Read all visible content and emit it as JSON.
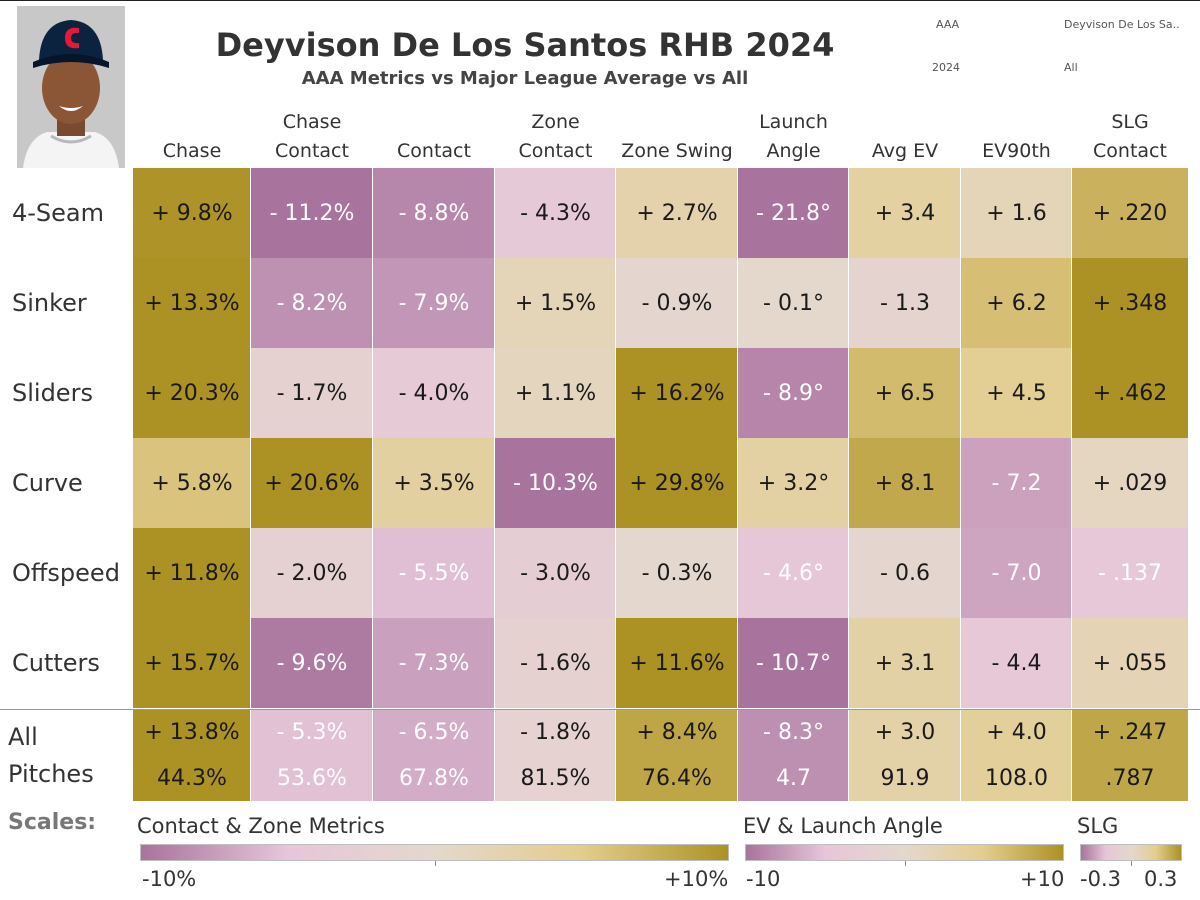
{
  "title": "Deyvison De Los Santos RHB 2024",
  "subtitle": "AAA Metrics vs Major League Average vs All",
  "filters": {
    "level": "AAA",
    "player": "Deyvison De Los Sa..",
    "year": "2024",
    "pitch_group": "All"
  },
  "photo": {
    "cap_color": "#0c2340",
    "logo_color": "#e31937",
    "logo_letter": "C"
  },
  "colors": {
    "purple_dark": "#a8739c",
    "purple_light": "#e6c6d9",
    "neutral": "#e4d8cc",
    "gold_light": "#e3cd8e",
    "gold_dark": "#ac9224"
  },
  "chart_data": {
    "type": "heatmap",
    "columns": [
      {
        "label": [
          "Chase"
        ],
        "scale": "pct"
      },
      {
        "label": [
          "Chase",
          "Contact"
        ],
        "scale": "pct"
      },
      {
        "label": [
          "Contact"
        ],
        "scale": "pct"
      },
      {
        "label": [
          "Zone",
          "Contact"
        ],
        "scale": "pct"
      },
      {
        "label": [
          "Zone Swing"
        ],
        "scale": "pct"
      },
      {
        "label": [
          "Launch",
          "Angle"
        ],
        "scale": "ev"
      },
      {
        "label": [
          "Avg EV"
        ],
        "scale": "ev"
      },
      {
        "label": [
          "EV90th"
        ],
        "scale": "ev"
      },
      {
        "label": [
          "SLG",
          "Contact"
        ],
        "scale": "slg"
      }
    ],
    "rows": [
      {
        "label": "4-Seam",
        "values": [
          9.8,
          -11.2,
          -8.8,
          -4.3,
          2.7,
          -21.8,
          3.4,
          1.6,
          0.22
        ],
        "text": [
          "+ 9.8%",
          "- 11.2%",
          "- 8.8%",
          "- 4.3%",
          "+ 2.7%",
          "- 21.8°",
          "+ 3.4",
          "+ 1.6",
          "+ .220"
        ]
      },
      {
        "label": "Sinker",
        "values": [
          13.3,
          -8.2,
          -7.9,
          1.5,
          -0.9,
          -0.1,
          -1.3,
          6.2,
          0.348
        ],
        "text": [
          "+ 13.3%",
          "- 8.2%",
          "- 7.9%",
          "+ 1.5%",
          "- 0.9%",
          "- 0.1°",
          "- 1.3",
          "+ 6.2",
          "+ .348"
        ]
      },
      {
        "label": "Sliders",
        "values": [
          20.3,
          -1.7,
          -4.0,
          1.1,
          16.2,
          -8.9,
          6.5,
          4.5,
          0.462
        ],
        "text": [
          "+ 20.3%",
          "- 1.7%",
          "- 4.0%",
          "+ 1.1%",
          "+ 16.2%",
          "- 8.9°",
          "+ 6.5",
          "+ 4.5",
          "+ .462"
        ]
      },
      {
        "label": "Curve",
        "values": [
          5.8,
          20.6,
          3.5,
          -10.3,
          29.8,
          3.2,
          8.1,
          -7.2,
          0.029
        ],
        "text": [
          "+ 5.8%",
          "+ 20.6%",
          "+ 3.5%",
          "- 10.3%",
          "+ 29.8%",
          "+ 3.2°",
          "+ 8.1",
          "- 7.2",
          "+ .029"
        ]
      },
      {
        "label": "Offspeed",
        "values": [
          11.8,
          -2.0,
          -5.5,
          -3.0,
          -0.3,
          -4.6,
          -0.6,
          -7.0,
          -0.137
        ],
        "text": [
          "+ 11.8%",
          "- 2.0%",
          "- 5.5%",
          "- 3.0%",
          "- 0.3%",
          "- 4.6°",
          "- 0.6",
          "- 7.0",
          "- .137"
        ]
      },
      {
        "label": "Cutters",
        "values": [
          15.7,
          -9.6,
          -7.3,
          -1.6,
          11.6,
          -10.7,
          3.1,
          -4.4,
          0.055
        ],
        "text": [
          "+ 15.7%",
          "- 9.6%",
          "- 7.3%",
          "- 1.6%",
          "+ 11.6%",
          "- 10.7°",
          "+ 3.1",
          "- 4.4",
          "+ .055"
        ]
      }
    ],
    "all_row": {
      "label": [
        "All",
        "Pitches"
      ],
      "values": [
        13.8,
        -5.3,
        -6.5,
        -1.8,
        8.4,
        -8.3,
        3.0,
        4.0,
        0.247
      ],
      "text": [
        "+ 13.8%",
        "- 5.3%",
        "- 6.5%",
        "- 1.8%",
        "+ 8.4%",
        "- 8.3°",
        "+ 3.0",
        "+ 4.0",
        "+ .247"
      ],
      "totals": [
        "44.3%",
        "53.6%",
        "67.8%",
        "81.5%",
        "76.4%",
        "4.7",
        "91.9",
        "108.0",
        ".787"
      ]
    },
    "scales": {
      "label": "Scales:",
      "pct": {
        "title": "Contact & Zone Metrics",
        "min_label": "-10%",
        "max_label": "+10%",
        "range": [
          -10,
          10
        ]
      },
      "ev": {
        "title": "EV & Launch Angle",
        "min_label": "-10",
        "max_label": "+10",
        "range": [
          -10,
          10
        ]
      },
      "slg": {
        "title": "SLG",
        "min_label": "-0.3",
        "max_label": "0.3",
        "range": [
          -0.3,
          0.3
        ]
      }
    }
  }
}
